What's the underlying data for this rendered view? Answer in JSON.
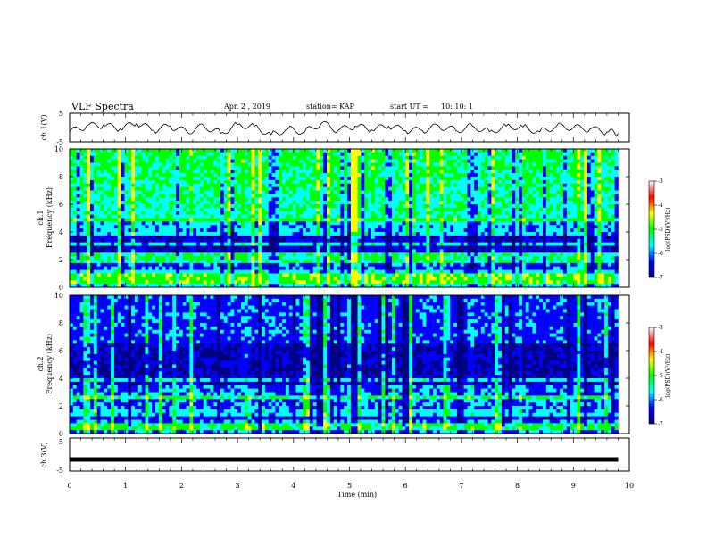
{
  "header": {
    "title": "VLF Spectra",
    "date": "Apr. 2 , 2019",
    "station": "station= KAP",
    "start_label": "start UT =",
    "start_time": "10: 10: 1"
  },
  "chart_data": [
    {
      "type": "line",
      "id": "ch1-waveform",
      "ylabel": "ch.1(V)",
      "ylim": [
        -5,
        5
      ],
      "yticks": [
        "5",
        "-5"
      ],
      "xlim": [
        0,
        10
      ],
      "x": [
        0,
        0.3,
        0.6,
        0.9,
        1.2,
        1.5,
        1.8,
        2.1,
        2.4,
        2.7,
        3.0,
        3.3,
        3.6,
        3.9,
        4.2,
        4.5,
        4.8,
        5.1,
        5.4,
        5.7,
        6.0,
        6.3,
        6.6,
        6.9,
        7.2,
        7.5,
        7.8,
        8.1,
        8.4,
        8.7,
        9.0,
        9.3,
        9.6,
        9.8
      ],
      "y": [
        -1.5,
        0.5,
        0.8,
        -0.5,
        1.5,
        -1.0,
        0.5,
        -1.5,
        0.5,
        -2.0,
        1.0,
        0.5,
        -2.5,
        -0.5,
        -1.5,
        1.5,
        -1.0,
        0.5,
        -0.8,
        0.5,
        -1.0,
        -1.0,
        0.5,
        -1.0,
        0.5,
        -1.5,
        0.5,
        0.2,
        -1.5,
        0.5,
        0.0,
        -0.5,
        -1.5,
        -2.0
      ]
    },
    {
      "type": "heatmap",
      "id": "ch1-spectrogram",
      "ylabel_top": "ch.1",
      "ylabel": "Frequency (kHz)",
      "ylim": [
        0,
        10
      ],
      "yticks": [
        "0",
        "2",
        "4",
        "6",
        "8",
        "10"
      ],
      "xlim": [
        0,
        9.8
      ],
      "colorbar": {
        "label": "log(PSD)(V²/Hz)",
        "min": -7,
        "max": -3,
        "ticks": [
          "-3",
          "-4",
          "-5",
          "-6",
          "-7"
        ]
      },
      "bands_khz": [
        0.5,
        0.9,
        2.0,
        2.4,
        3.2,
        3.8,
        4.8
      ]
    },
    {
      "type": "heatmap",
      "id": "ch2-spectrogram",
      "ylabel_top": "ch.2",
      "ylabel": "Frequency (kHz)",
      "ylim": [
        0,
        10
      ],
      "yticks": [
        "0",
        "2",
        "4",
        "6",
        "8",
        "10"
      ],
      "xlim": [
        0,
        9.8
      ],
      "colorbar": {
        "label": "log(PSD)(V²/Hz)",
        "min": -7,
        "max": -3,
        "ticks": [
          "-3",
          "-4",
          "-5",
          "-6",
          "-7"
        ]
      },
      "bands_khz": [
        0.3,
        0.6,
        1.5,
        2.7,
        3.8
      ]
    },
    {
      "type": "line",
      "id": "ch3-waveform",
      "ylabel": "ch.3(V)",
      "ylim": [
        -5,
        5
      ],
      "yticks": [
        "5",
        "-5"
      ],
      "xlim": [
        0,
        10
      ],
      "x": [
        0,
        9.8
      ],
      "y": [
        -1.5,
        -1.5
      ]
    }
  ],
  "x_axis": {
    "label": "Time (min)",
    "ticks": [
      "0",
      "1",
      "2",
      "3",
      "4",
      "5",
      "6",
      "7",
      "8",
      "9",
      "10"
    ]
  },
  "colors": {
    "colormap": [
      "#000080",
      "#0000ff",
      "#00ffff",
      "#00ff00",
      "#ffff00",
      "#ff0000",
      "#ffffff"
    ]
  }
}
